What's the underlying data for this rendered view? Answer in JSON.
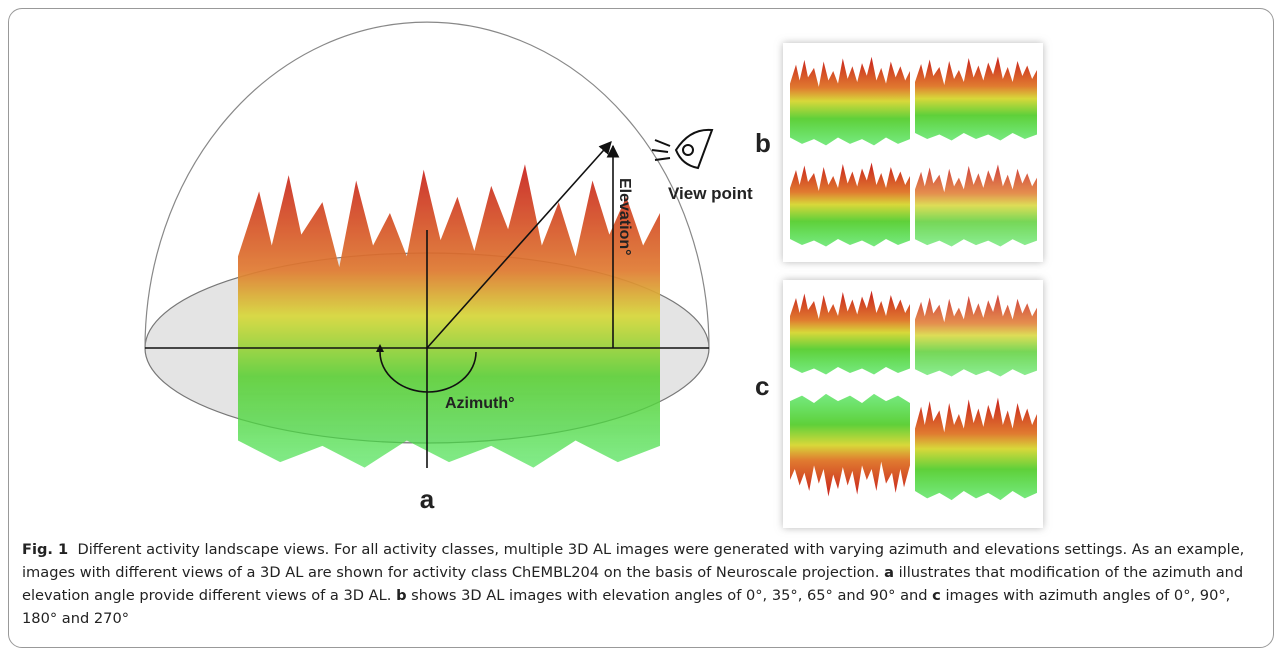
{
  "figure": {
    "panel_a": {
      "label": "a",
      "view_point": "View point",
      "elevation": "Elevation°",
      "azimuth": "Azimuth°"
    },
    "panel_b": {
      "label": "b"
    },
    "panel_c": {
      "label": "c"
    }
  },
  "caption": {
    "label": "Fig. 1",
    "text_1": "Different activity landscape views. For all activity classes, multiple 3D AL images were generated with varying azimuth and elevations settings. As an example, images with different views of a 3D AL are shown for activity class ChEMBL204 on the basis of Neuroscale projection. ",
    "ref_a": "a",
    "text_2": " illustrates that modification of the azimuth and elevation angle provide different views of a 3D AL. ",
    "ref_b": "b",
    "text_3": " shows 3D AL images with elevation angles of 0°, 35°, 65° and 90° and ",
    "ref_c": "c",
    "text_4": " images with azimuth angles of 0°, 90°, 180° and 270°"
  }
}
